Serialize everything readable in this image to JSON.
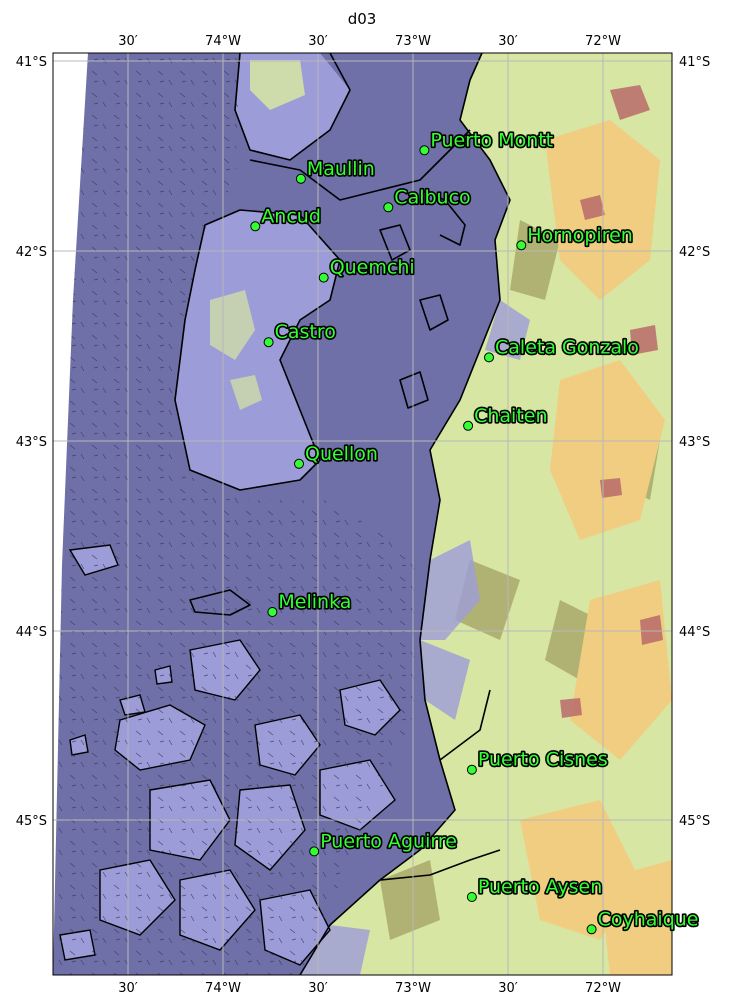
{
  "map": {
    "title": "d03",
    "colors": {
      "sea": "#6f70a8",
      "lowland": "#9c9cd8",
      "land_green": "#d7e6a3",
      "land_olive": "#a8a86a",
      "land_tan": "#f0cd80",
      "land_brown": "#b86a6a",
      "marker": "#33ff33",
      "label_text": "#33ff33",
      "label_outline": "#000000"
    },
    "lon_ticks_top": [
      "30′",
      "74°W",
      "30′",
      "73°W",
      "30′",
      "72°W"
    ],
    "lon_ticks_bottom": [
      "30′",
      "74°W",
      "30′",
      "73°W",
      "30′",
      "72°W"
    ],
    "lat_ticks_left": [
      "41°S",
      "42°S",
      "43°S",
      "44°S",
      "45°S"
    ],
    "lat_ticks_right": [
      "41°S",
      "42°S",
      "43°S",
      "44°S",
      "45°S"
    ],
    "cities": [
      {
        "name": "Puerto Montt",
        "lon": -72.94,
        "lat": -41.47
      },
      {
        "name": "Maullin",
        "lon": -73.59,
        "lat": -41.62
      },
      {
        "name": "Calbuco",
        "lon": -73.13,
        "lat": -41.77
      },
      {
        "name": "Ancud",
        "lon": -73.83,
        "lat": -41.87
      },
      {
        "name": "Hornopiren",
        "lon": -72.43,
        "lat": -41.97
      },
      {
        "name": "Quemchi",
        "lon": -73.47,
        "lat": -42.14
      },
      {
        "name": "Castro",
        "lon": -73.76,
        "lat": -42.48
      },
      {
        "name": "Caleta Gonzalo",
        "lon": -72.6,
        "lat": -42.56
      },
      {
        "name": "Chaiten",
        "lon": -72.71,
        "lat": -42.92
      },
      {
        "name": "Quellon",
        "lon": -73.6,
        "lat": -43.12
      },
      {
        "name": "Melinka",
        "lon": -73.74,
        "lat": -43.9
      },
      {
        "name": "Puerto Cisnes",
        "lon": -72.69,
        "lat": -44.73
      },
      {
        "name": "Puerto Aguirre",
        "lon": -73.52,
        "lat": -45.16
      },
      {
        "name": "Puerto Aysen",
        "lon": -72.69,
        "lat": -45.4
      },
      {
        "name": "Coyhaique",
        "lon": -72.06,
        "lat": -45.57
      }
    ]
  }
}
